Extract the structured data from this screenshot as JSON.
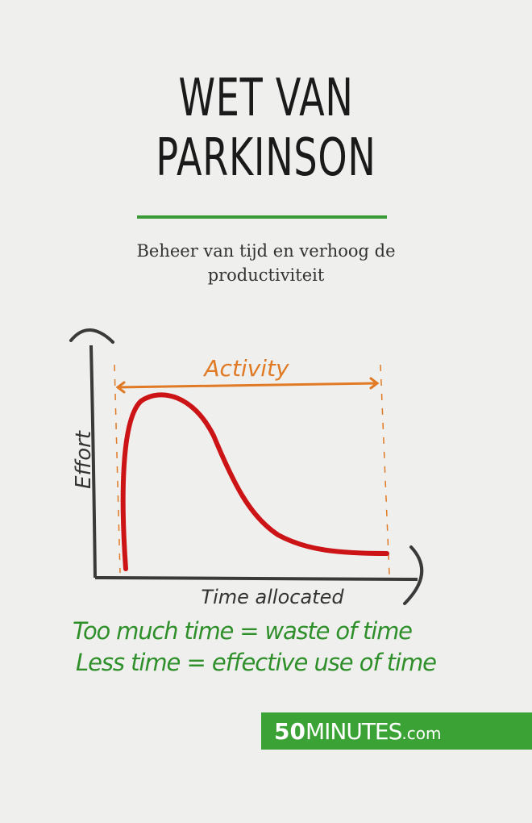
{
  "cover": {
    "title_line1": "WET VAN",
    "title_line2": "PARKINSON",
    "subtitle_line1": "Beheer van tijd en verhoog de",
    "subtitle_line2": "productiviteit",
    "accent_color": "#3ba335"
  },
  "illustration": {
    "activity_label": "Activity",
    "y_axis_label": "Effort",
    "x_axis_label": "Time allocated",
    "curve_color": "#cc1417",
    "activity_color": "#e07a25",
    "caption_line1": "Too much time = waste of time",
    "caption_line2": "Less time = effective use of time"
  },
  "brand": {
    "bold": "50",
    "name": "MINUTES",
    "suffix": ".com"
  }
}
